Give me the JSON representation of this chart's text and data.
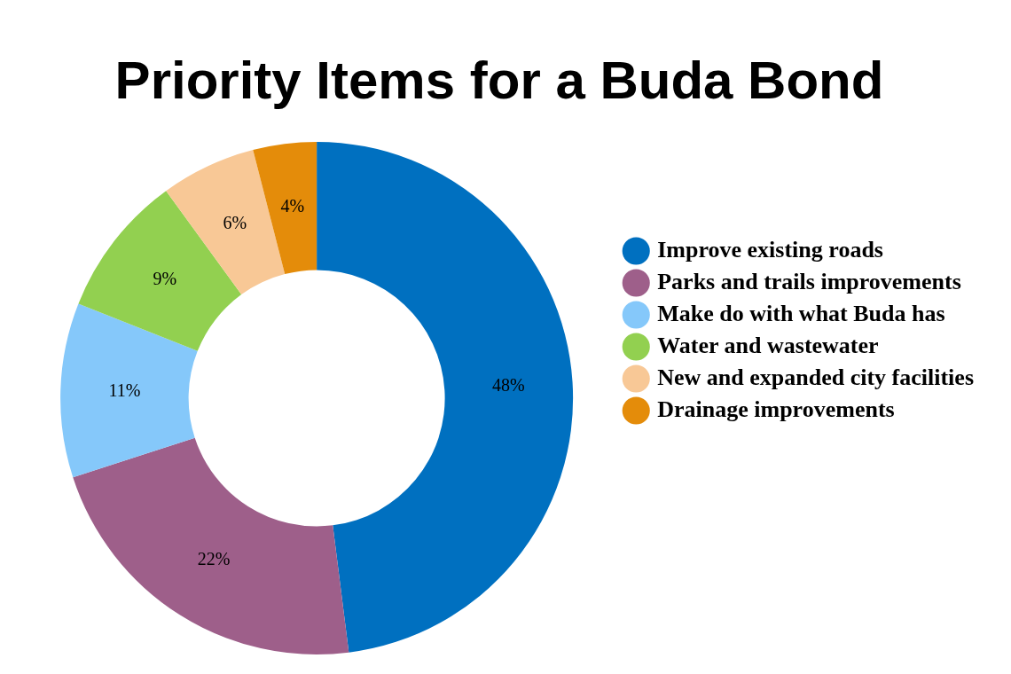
{
  "chart_data": {
    "type": "donut",
    "title": "Priority Items for a Buda Bond",
    "categories": [
      "Improve existing roads",
      "Parks and trails improvements",
      "Make do with what Buda has",
      "Water and wastewater",
      "New and expanded city facilities",
      "Drainage improvements"
    ],
    "values": [
      48,
      22,
      11,
      9,
      6,
      4
    ],
    "colors": [
      "#0070c0",
      "#9e5f8a",
      "#85c8fa",
      "#92d050",
      "#f8c896",
      "#e48c0a"
    ],
    "value_labels": [
      "48%",
      "22%",
      "11%",
      "9%",
      "6%",
      "4%"
    ],
    "legend": "right"
  }
}
